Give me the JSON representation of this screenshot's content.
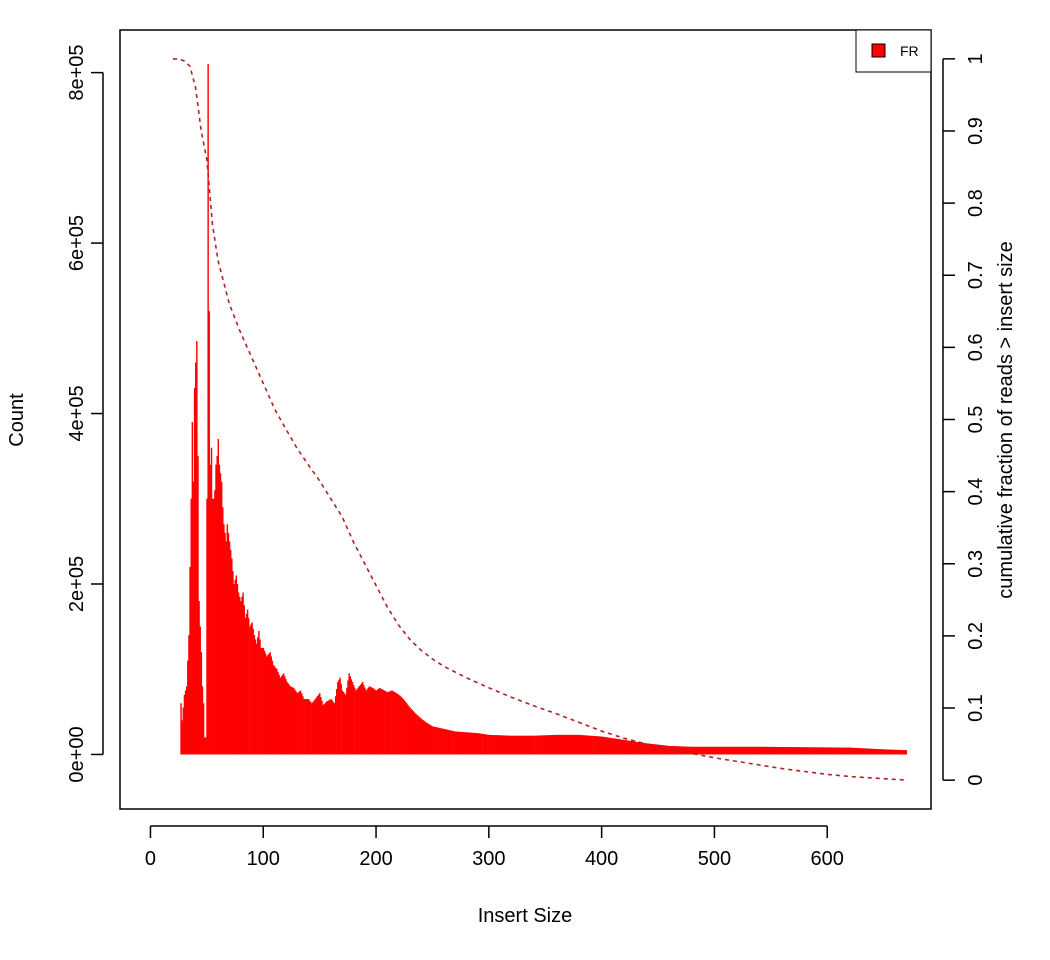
{
  "chart_data": {
    "type": "bar",
    "xlabel": "Insert Size",
    "ylabel": "Count",
    "y2label": "cumulative fraction of reads > insert size",
    "xlim": [
      -27,
      692
    ],
    "ylim": [
      -64000,
      850000
    ],
    "y2lim": [
      -0.04,
      1.04
    ],
    "xticks": [
      0,
      100,
      200,
      300,
      400,
      500,
      600
    ],
    "yticks": [
      0,
      200000,
      400000,
      600000,
      800000
    ],
    "ytick_labels": [
      "0e+00",
      "2e+05",
      "4e+05",
      "6e+05",
      "8e+05"
    ],
    "y2ticks": [
      0,
      0.1,
      0.2,
      0.3,
      0.4,
      0.5,
      0.6,
      0.7,
      0.8,
      0.9,
      1
    ],
    "y2tick_labels": [
      "0",
      "0.1",
      "0.2",
      "0.3",
      "0.4",
      "0.5",
      "0.6",
      "0.7",
      "0.8",
      "0.9",
      "1"
    ],
    "legend": {
      "position": "top-right",
      "entries": [
        {
          "label": "FR",
          "color": "#ff0000"
        }
      ]
    },
    "grid": false,
    "colors": {
      "histogram": "#ff0000",
      "cumulative": "#b22222"
    },
    "series": [
      {
        "name": "FR",
        "type": "histogram",
        "points": [
          [
            20,
            0
          ],
          [
            26,
            0
          ],
          [
            27,
            60000
          ],
          [
            28,
            40000
          ],
          [
            30,
            70000
          ],
          [
            32,
            80000
          ],
          [
            34,
            140000
          ],
          [
            36,
            300000
          ],
          [
            37,
            390000
          ],
          [
            38,
            320000
          ],
          [
            39,
            430000
          ],
          [
            40,
            460000
          ],
          [
            41,
            485000
          ],
          [
            42,
            350000
          ],
          [
            43,
            180000
          ],
          [
            44,
            150000
          ],
          [
            45,
            120000
          ],
          [
            46,
            80000
          ],
          [
            47,
            60000
          ],
          [
            48,
            20000
          ],
          [
            49,
            20000
          ],
          [
            50,
            300000
          ],
          [
            51,
            810000
          ],
          [
            52,
            520000
          ],
          [
            53,
            340000
          ],
          [
            54,
            360000
          ],
          [
            55,
            300000
          ],
          [
            56,
            300000
          ],
          [
            57,
            310000
          ],
          [
            58,
            340000
          ],
          [
            59,
            350000
          ],
          [
            60,
            370000
          ],
          [
            61,
            340000
          ],
          [
            62,
            330000
          ],
          [
            63,
            320000
          ],
          [
            64,
            290000
          ],
          [
            65,
            270000
          ],
          [
            66,
            260000
          ],
          [
            67,
            250000
          ],
          [
            68,
            270000
          ],
          [
            69,
            260000
          ],
          [
            70,
            250000
          ],
          [
            72,
            230000
          ],
          [
            74,
            200000
          ],
          [
            76,
            210000
          ],
          [
            78,
            190000
          ],
          [
            80,
            180000
          ],
          [
            82,
            190000
          ],
          [
            84,
            160000
          ],
          [
            86,
            170000
          ],
          [
            88,
            150000
          ],
          [
            90,
            155000
          ],
          [
            92,
            140000
          ],
          [
            94,
            130000
          ],
          [
            96,
            145000
          ],
          [
            98,
            125000
          ],
          [
            100,
            125000
          ],
          [
            103,
            115000
          ],
          [
            106,
            120000
          ],
          [
            109,
            105000
          ],
          [
            112,
            100000
          ],
          [
            115,
            90000
          ],
          [
            118,
            95000
          ],
          [
            121,
            85000
          ],
          [
            124,
            80000
          ],
          [
            127,
            78000
          ],
          [
            130,
            72000
          ],
          [
            133,
            75000
          ],
          [
            136,
            65000
          ],
          [
            140,
            65000
          ],
          [
            143,
            60000
          ],
          [
            146,
            65000
          ],
          [
            150,
            72000
          ],
          [
            153,
            58000
          ],
          [
            156,
            62000
          ],
          [
            160,
            65000
          ],
          [
            163,
            60000
          ],
          [
            166,
            85000
          ],
          [
            168,
            90000
          ],
          [
            170,
            75000
          ],
          [
            173,
            70000
          ],
          [
            176,
            95000
          ],
          [
            179,
            85000
          ],
          [
            182,
            75000
          ],
          [
            185,
            80000
          ],
          [
            188,
            85000
          ],
          [
            191,
            75000
          ],
          [
            194,
            80000
          ],
          [
            197,
            78000
          ],
          [
            200,
            75000
          ],
          [
            203,
            78000
          ],
          [
            206,
            76000
          ],
          [
            210,
            73000
          ],
          [
            214,
            75000
          ],
          [
            218,
            72000
          ],
          [
            222,
            68000
          ],
          [
            226,
            62000
          ],
          [
            230,
            55000
          ],
          [
            235,
            48000
          ],
          [
            240,
            42000
          ],
          [
            245,
            37000
          ],
          [
            250,
            33000
          ],
          [
            260,
            30000
          ],
          [
            270,
            27000
          ],
          [
            280,
            26000
          ],
          [
            290,
            25000
          ],
          [
            300,
            23000
          ],
          [
            320,
            22000
          ],
          [
            340,
            22000
          ],
          [
            360,
            23000
          ],
          [
            380,
            23000
          ],
          [
            400,
            21000
          ],
          [
            420,
            17000
          ],
          [
            440,
            13000
          ],
          [
            460,
            10000
          ],
          [
            480,
            9000
          ],
          [
            500,
            9000
          ],
          [
            540,
            9000
          ],
          [
            580,
            8500
          ],
          [
            620,
            8000
          ],
          [
            650,
            6000
          ],
          [
            670,
            5000
          ]
        ]
      },
      {
        "name": "",
        "type": "line",
        "style": "dotted",
        "axis": "right",
        "points": [
          [
            20,
            1.0
          ],
          [
            25,
            1.0
          ],
          [
            30,
            0.997
          ],
          [
            35,
            0.99
          ],
          [
            40,
            0.96
          ],
          [
            45,
            0.9
          ],
          [
            50,
            0.86
          ],
          [
            55,
            0.77
          ],
          [
            60,
            0.72
          ],
          [
            70,
            0.66
          ],
          [
            80,
            0.62
          ],
          [
            90,
            0.585
          ],
          [
            100,
            0.55
          ],
          [
            110,
            0.515
          ],
          [
            120,
            0.487
          ],
          [
            130,
            0.46
          ],
          [
            140,
            0.437
          ],
          [
            150,
            0.415
          ],
          [
            160,
            0.39
          ],
          [
            170,
            0.365
          ],
          [
            180,
            0.33
          ],
          [
            190,
            0.3
          ],
          [
            200,
            0.27
          ],
          [
            210,
            0.24
          ],
          [
            220,
            0.215
          ],
          [
            230,
            0.195
          ],
          [
            240,
            0.18
          ],
          [
            250,
            0.168
          ],
          [
            260,
            0.158
          ],
          [
            270,
            0.15
          ],
          [
            280,
            0.142
          ],
          [
            290,
            0.135
          ],
          [
            300,
            0.128
          ],
          [
            320,
            0.115
          ],
          [
            340,
            0.103
          ],
          [
            360,
            0.092
          ],
          [
            380,
            0.08
          ],
          [
            400,
            0.068
          ],
          [
            420,
            0.058
          ],
          [
            440,
            0.05
          ],
          [
            460,
            0.043
          ],
          [
            480,
            0.037
          ],
          [
            500,
            0.031
          ],
          [
            520,
            0.026
          ],
          [
            540,
            0.021
          ],
          [
            560,
            0.016
          ],
          [
            580,
            0.012
          ],
          [
            600,
            0.008
          ],
          [
            620,
            0.005
          ],
          [
            640,
            0.003
          ],
          [
            660,
            0.001
          ],
          [
            670,
            0.0
          ]
        ]
      }
    ]
  }
}
